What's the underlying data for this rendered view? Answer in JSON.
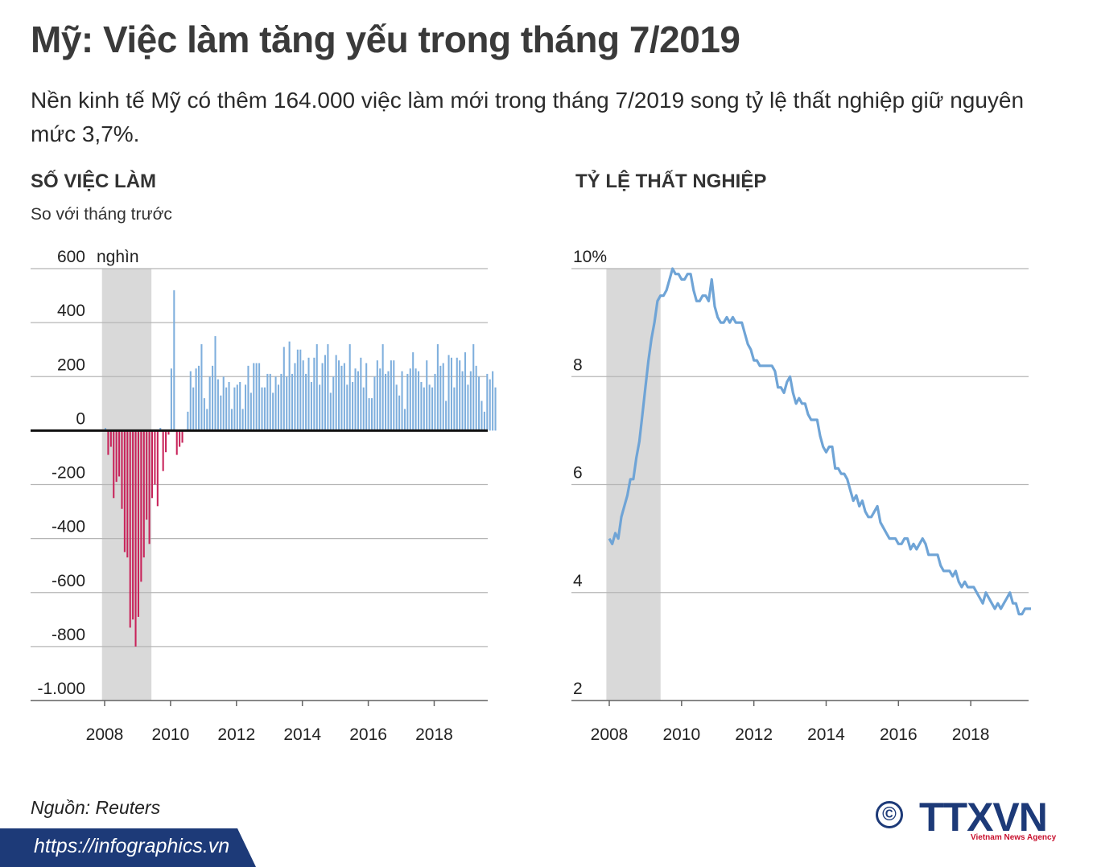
{
  "header": {
    "title": "Mỹ: Việc làm tăng yếu trong tháng 7/2019",
    "subtitle": "Nền kinh tế Mỹ có thêm 164.000 việc làm mới trong tháng 7/2019 song tỷ lệ thất nghiệp giữ nguyên mức 3,7%."
  },
  "chart_data": [
    {
      "type": "bar",
      "title": "SỐ VIỆC LÀM",
      "subtitle": "So với tháng trước",
      "unit": "nghìn",
      "ylim": [
        -1000,
        600
      ],
      "yticks": [
        600,
        400,
        200,
        0,
        -200,
        -400,
        -600,
        -800,
        -1000
      ],
      "ytick_labels": [
        "600",
        "400",
        "200",
        "0",
        "-200",
        "-400",
        "-600",
        "-800",
        "-1.000"
      ],
      "xticks": [
        2008,
        2010,
        2012,
        2014,
        2016,
        2018
      ],
      "xlim": [
        2008.0,
        2019.6
      ],
      "recession": [
        2007.92,
        2009.42
      ],
      "start": 2008.0,
      "positive_color": "#7fafdd",
      "negative_color": "#c8235a",
      "grid": true,
      "values": [
        10,
        -90,
        -60,
        -250,
        -190,
        -170,
        -290,
        -450,
        -470,
        -730,
        -700,
        -800,
        -690,
        -560,
        -470,
        -330,
        -420,
        -250,
        -200,
        -280,
        10,
        -150,
        -80,
        -15,
        230,
        520,
        -90,
        -60,
        -45,
        0,
        70,
        220,
        160,
        230,
        240,
        320,
        120,
        80,
        200,
        240,
        350,
        190,
        130,
        200,
        160,
        180,
        80,
        160,
        170,
        180,
        80,
        170,
        240,
        140,
        250,
        250,
        250,
        160,
        160,
        210,
        210,
        140,
        200,
        170,
        210,
        310,
        200,
        330,
        210,
        250,
        300,
        300,
        260,
        210,
        270,
        180,
        270,
        320,
        170,
        250,
        280,
        320,
        140,
        200,
        280,
        260,
        240,
        250,
        170,
        320,
        180,
        230,
        220,
        270,
        160,
        250,
        120,
        120,
        200,
        260,
        230,
        320,
        210,
        220,
        260,
        260,
        170,
        130,
        220,
        80,
        210,
        230,
        290,
        230,
        220,
        180,
        160,
        260,
        170,
        160,
        210,
        320,
        240,
        250,
        110,
        280,
        270,
        160,
        270,
        260,
        220,
        290,
        170,
        220,
        320,
        240,
        200,
        110,
        70,
        210,
        190,
        220,
        160
      ]
    },
    {
      "type": "line",
      "title": "TỶ LỆ THẤT NGHIỆP",
      "unit": "%",
      "ylim": [
        2,
        10
      ],
      "yticks": [
        10,
        8,
        6,
        4,
        2
      ],
      "ytick_labels": [
        "10%",
        "8",
        "6",
        "4",
        "2"
      ],
      "xticks": [
        2008,
        2010,
        2012,
        2014,
        2016,
        2018
      ],
      "xlim": [
        2008.0,
        2019.6
      ],
      "recession": [
        2007.92,
        2009.42
      ],
      "start": 2008.0,
      "color": "#6fa4d6",
      "grid": true,
      "values": [
        5.0,
        4.9,
        5.1,
        5.0,
        5.4,
        5.6,
        5.8,
        6.1,
        6.1,
        6.5,
        6.8,
        7.3,
        7.8,
        8.3,
        8.7,
        9.0,
        9.4,
        9.5,
        9.5,
        9.6,
        9.8,
        10.0,
        9.9,
        9.9,
        9.8,
        9.8,
        9.9,
        9.9,
        9.6,
        9.4,
        9.4,
        9.5,
        9.5,
        9.4,
        9.8,
        9.3,
        9.1,
        9.0,
        9.0,
        9.1,
        9.0,
        9.1,
        9.0,
        9.0,
        9.0,
        8.8,
        8.6,
        8.5,
        8.3,
        8.3,
        8.2,
        8.2,
        8.2,
        8.2,
        8.2,
        8.1,
        7.8,
        7.8,
        7.7,
        7.9,
        8.0,
        7.7,
        7.5,
        7.6,
        7.5,
        7.5,
        7.3,
        7.2,
        7.2,
        7.2,
        6.9,
        6.7,
        6.6,
        6.7,
        6.7,
        6.3,
        6.3,
        6.2,
        6.2,
        6.1,
        5.9,
        5.7,
        5.8,
        5.6,
        5.7,
        5.5,
        5.4,
        5.4,
        5.5,
        5.6,
        5.3,
        5.2,
        5.1,
        5.0,
        5.0,
        5.0,
        4.9,
        4.9,
        5.0,
        5.0,
        4.8,
        4.9,
        4.8,
        4.9,
        5.0,
        4.9,
        4.7,
        4.7,
        4.7,
        4.7,
        4.5,
        4.4,
        4.4,
        4.4,
        4.3,
        4.4,
        4.2,
        4.1,
        4.2,
        4.1,
        4.1,
        4.1,
        4.0,
        3.9,
        3.8,
        4.0,
        3.9,
        3.8,
        3.7,
        3.8,
        3.7,
        3.8,
        3.9,
        4.0,
        3.8,
        3.8,
        3.6,
        3.6,
        3.7,
        3.7,
        3.7
      ]
    }
  ],
  "footer": {
    "source": "Nguồn: Reuters",
    "url": "https://infographics.vn",
    "copyright_symbol": "©",
    "logo_text": "TTXVN",
    "logo_tagline": "Vietnam News Agency",
    "band_color": "#1d3a78"
  }
}
